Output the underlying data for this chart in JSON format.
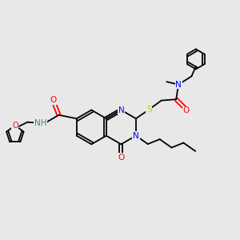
{
  "bg_color": "#e8e8e8",
  "atom_colors": {
    "C": "#000000",
    "N": "#0000ff",
    "O": "#ff0000",
    "S": "#cccc00",
    "H": "#3a8a6a"
  },
  "lw": 1.3,
  "fs": 7.5
}
